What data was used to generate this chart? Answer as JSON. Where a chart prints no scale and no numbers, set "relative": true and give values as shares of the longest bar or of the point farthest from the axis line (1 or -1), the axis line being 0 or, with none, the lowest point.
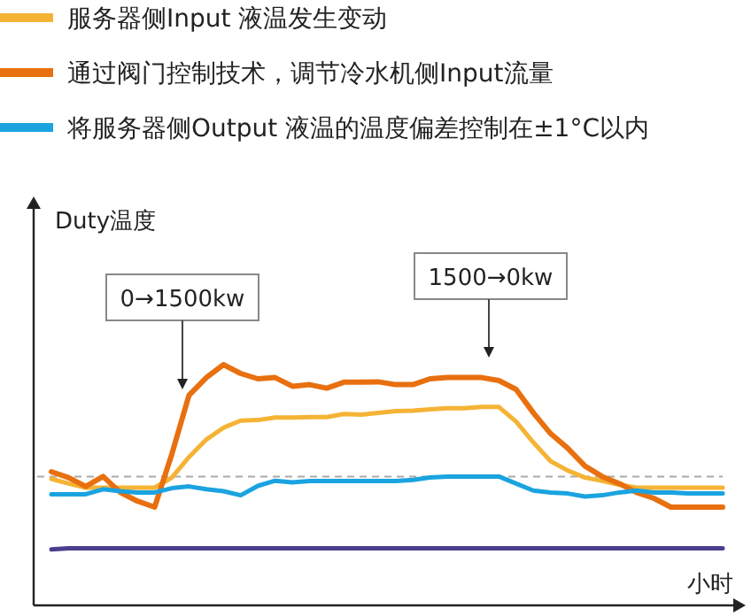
{
  "chart_data": {
    "type": "line",
    "relative": true,
    "xlabel": "小时",
    "legend": "top left",
    "line_style": "solid",
    "categories": [
      null,
      null,
      null,
      null,
      null,
      null,
      null,
      null,
      null,
      null,
      null,
      null,
      null,
      null,
      null,
      null,
      null,
      null,
      null,
      null,
      null,
      null,
      null,
      null,
      null,
      null,
      null,
      null,
      null,
      null,
      null,
      null,
      null,
      null,
      null,
      null,
      null,
      null,
      null,
      null
    ],
    "series": [
      {
        "name": "服务器侧Input 液温发生变动",
        "color": "#f5b335",
        "values": [
          0.526,
          0.506,
          0.489,
          0.489,
          0.489,
          0.489,
          0.489,
          0.531,
          0.616,
          0.689,
          0.738,
          0.768,
          0.77,
          0.78,
          0.78,
          0.782,
          0.782,
          0.795,
          0.792,
          0.8,
          0.807,
          0.809,
          0.814,
          0.819,
          0.819,
          0.824,
          0.824,
          0.763,
          0.677,
          0.599,
          0.56,
          0.531,
          0.518,
          0.501,
          0.489,
          0.489,
          0.489,
          0.489,
          0.489,
          0.489
        ]
      },
      {
        "name": "通过阀门控制技术，调节冷水机侧Input流量",
        "color": "#e8700f",
        "values": [
          0.555,
          0.531,
          0.494,
          0.535,
          0.469,
          0.433,
          0.408,
          0.628,
          0.873,
          0.946,
          1,
          0.963,
          0.941,
          0.946,
          0.91,
          0.917,
          0.902,
          0.927,
          0.927,
          0.929,
          0.917,
          0.917,
          0.941,
          0.946,
          0.946,
          0.946,
          0.934,
          0.897,
          0.8,
          0.714,
          0.653,
          0.579,
          0.535,
          0.506,
          0.469,
          0.445,
          0.408,
          0.408,
          0.408,
          0.408
        ]
      },
      {
        "name": "将服务器侧Output 液温的温度偏差控制在±1°C以内",
        "color": "#1aa3e0",
        "values": [
          0.462,
          0.462,
          0.462,
          0.482,
          0.474,
          0.469,
          0.469,
          0.487,
          0.494,
          0.482,
          0.474,
          0.457,
          0.496,
          0.518,
          0.511,
          0.516,
          0.516,
          0.516,
          0.516,
          0.516,
          0.516,
          0.521,
          0.531,
          0.535,
          0.535,
          0.535,
          0.535,
          0.506,
          0.477,
          0.469,
          0.465,
          0.452,
          0.457,
          0.469,
          0.477,
          0.469,
          0.469,
          0.465,
          0.465,
          0.465
        ]
      },
      {
        "color": "#4a3f8f",
        "values": [
          0.232,
          0.237,
          0.237,
          0.237,
          0.237,
          0.237,
          0.237,
          0.237,
          0.237,
          0.237,
          0.237,
          0.237,
          0.237,
          0.237,
          0.237,
          0.237,
          0.237,
          0.237,
          0.237,
          0.237,
          0.237,
          0.237,
          0.237,
          0.237,
          0.237,
          0.237,
          0.237,
          0.237,
          0.237,
          0.237,
          0.237,
          0.237,
          0.237,
          0.237,
          0.237,
          0.237,
          0.237,
          0.237,
          0.237,
          0.237
        ]
      }
    ],
    "ref_lines": [
      {
        "axis": "y",
        "value": 0.535,
        "color": "#aaaaaa",
        "line_style": "dashed"
      }
    ],
    "annotations": [
      "0→1500kw",
      "1500→0kw",
      "Duty温度"
    ]
  }
}
